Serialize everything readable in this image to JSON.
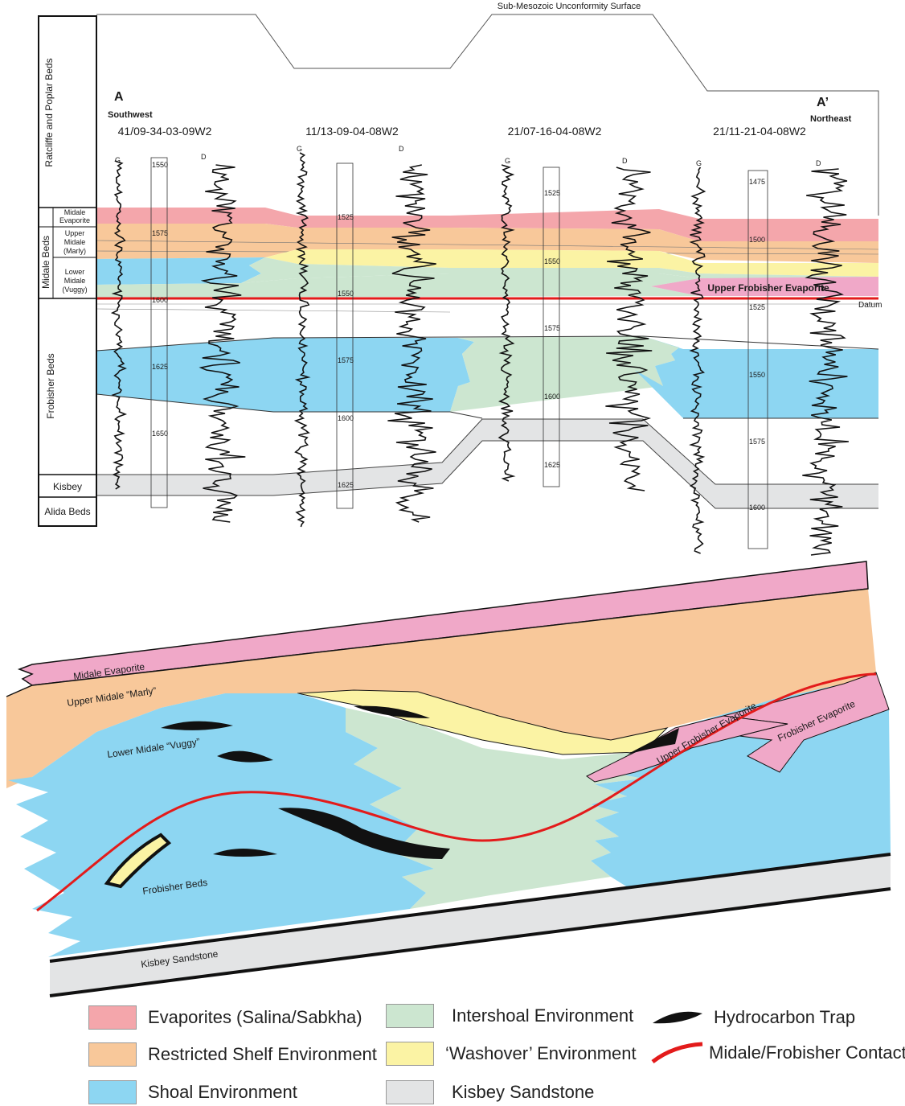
{
  "colors": {
    "evaporite_pink": "#f4a6ab",
    "evaporite_magenta": "#f0a8c8",
    "restricted_shelf": "#f8c89a",
    "shoal": "#8dd6f2",
    "intershoal": "#cce6d0",
    "washover": "#fbf3a4",
    "kisbey": "#e3e4e5",
    "contact": "#e31b1b",
    "trap": "#111111"
  },
  "cross_section": {
    "unconformity_label": "Sub-Mesozoic Unconformity Surface",
    "start_letter": "A",
    "start_direction": "Southwest",
    "end_letter": "A’",
    "end_direction": "Northeast",
    "upper_evaporite_label": "Upper Frobisher Evaporite",
    "datum_label": "Datum",
    "wells": [
      {
        "id": "41/09-34-03-09W2",
        "log_g": "G",
        "log_d": "D",
        "depths": [
          "1550",
          "1575",
          "1600",
          "1625",
          "1650"
        ]
      },
      {
        "id": "11/13-09-04-08W2",
        "log_g": "G",
        "log_d": "D",
        "depths": [
          "1525",
          "1550",
          "1575",
          "1600",
          "1625"
        ]
      },
      {
        "id": "21/07-16-04-08W2",
        "log_g": "G",
        "log_d": "D",
        "depths": [
          "1525",
          "1550",
          "1575",
          "1600",
          "1625"
        ]
      },
      {
        "id": "21/11-21-04-08W2",
        "log_g": "G",
        "log_d": "D",
        "depths": [
          "1475",
          "1500",
          "1525",
          "1550",
          "1575",
          "1600"
        ]
      }
    ],
    "strat_column": {
      "ratcliffe": "Ratcliffe and Poplar Beds",
      "midale_beds": "Midale Beds",
      "midale_evaporite": [
        "Midale",
        "Evaporite"
      ],
      "upper_midale": [
        "Upper",
        "Midale",
        "(Marly)"
      ],
      "lower_midale": [
        "Lower",
        "Midale",
        "(Vuggy)"
      ],
      "frobisher": "Frobisher Beds",
      "kisbey": "Kisbey",
      "alida": "Alida Beds"
    }
  },
  "block_diagram": {
    "midale_evaporite": "Midale Evaporite",
    "upper_midale": "Upper Midale “Marly”",
    "lower_midale": "Lower Midale “Vuggy”",
    "upper_frobisher_evaporite": "Upper Frobisher Evaporite",
    "frobisher_evaporite": "Frobisher Evaporite",
    "frobisher_beds": "Frobisher Beds",
    "kisbey_sandstone": "Kisbey Sandstone"
  },
  "legend": [
    {
      "label": "Evaporites (Salina/Sabkha)",
      "swatch": "evaporite_pink"
    },
    {
      "label": "Restricted Shelf Environment",
      "swatch": "restricted_shelf"
    },
    {
      "label": "Shoal Environment",
      "swatch": "shoal"
    },
    {
      "label": "Intershoal Environment",
      "swatch": "intershoal"
    },
    {
      "label": "‘Washover’ Environment",
      "swatch": "washover"
    },
    {
      "label": "Kisbey Sandstone",
      "swatch": "kisbey"
    },
    {
      "label": "Hydrocarbon Trap",
      "swatch": "trap"
    },
    {
      "label": "Midale/Frobisher Contact",
      "swatch": "contact"
    }
  ]
}
